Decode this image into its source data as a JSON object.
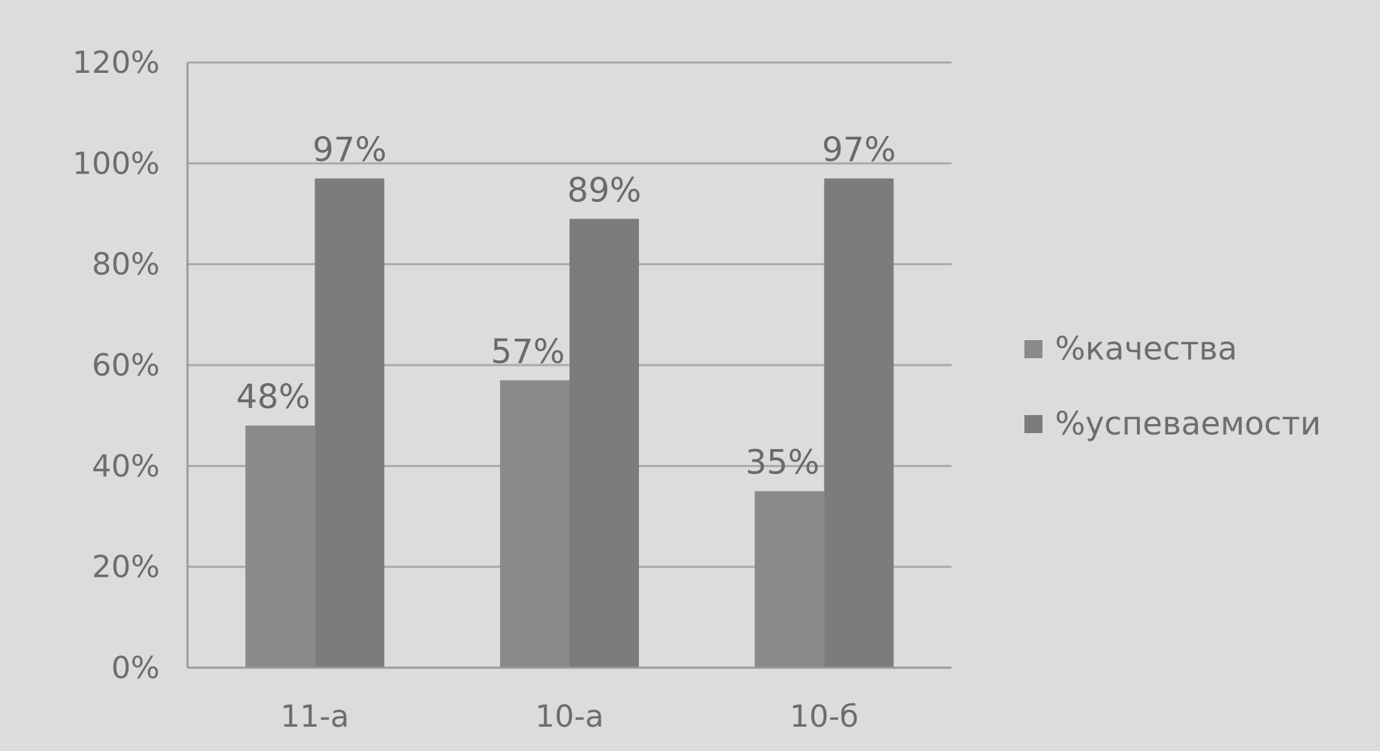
{
  "chart_data": {
    "type": "bar",
    "categories": [
      "11-а",
      "10-а",
      "10-б"
    ],
    "series": [
      {
        "name": "%качества",
        "values": [
          48,
          57,
          35
        ],
        "color": "#8a8a8a"
      },
      {
        "name": "%успеваемости",
        "values": [
          97,
          89,
          97
        ],
        "color": "#7c7c7c"
      }
    ],
    "data_labels": [
      [
        "48%",
        "57%",
        "35%"
      ],
      [
        "97%",
        "89%",
        "97%"
      ]
    ],
    "title": "",
    "xlabel": "",
    "ylabel": "",
    "ylim": [
      0,
      120
    ],
    "yticks": [
      "0%",
      "20%",
      "40%",
      "60%",
      "80%",
      "100%",
      "120%"
    ],
    "grid": true,
    "legend_position": "right",
    "colors": {
      "background": "#dcdcda",
      "gridline": "#a9a9a9",
      "axis": "#9a9a9a"
    }
  }
}
